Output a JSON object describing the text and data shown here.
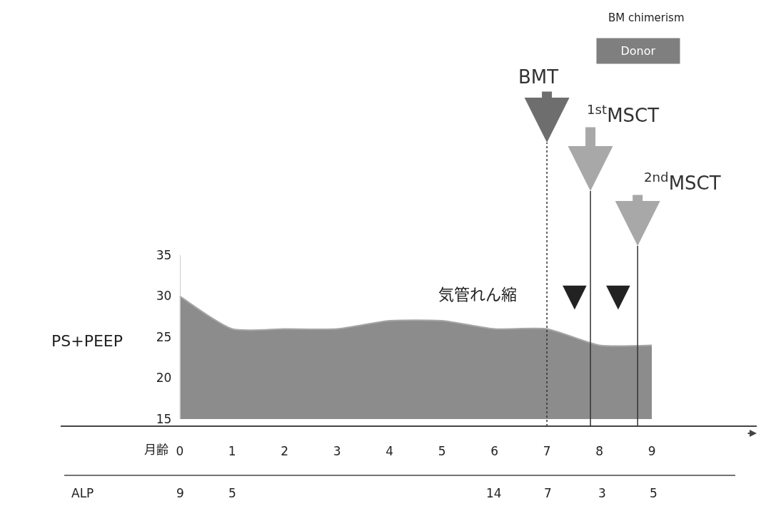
{
  "chart_data": {
    "type": "area",
    "x": [
      0,
      1,
      2,
      3,
      4,
      5,
      6,
      7,
      8,
      9
    ],
    "series": [
      {
        "color": "#8c8c8c",
        "values": [
          30,
          26,
          26,
          26,
          27,
          27,
          26,
          26,
          24,
          24
        ]
      }
    ],
    "xlim": [
      -2.27,
      11.0
    ],
    "xticks": [
      0,
      1,
      2,
      3,
      4,
      5,
      6,
      7,
      8,
      9
    ],
    "xlabel": "月齢",
    "ylim": [
      15,
      35
    ],
    "yticks": [
      15,
      20,
      25,
      30,
      35
    ],
    "ylabel": "PS+PEEP",
    "ref_lines": [
      {
        "axis": "x",
        "value": 7,
        "label": "BMT",
        "line_style": "dashed",
        "color": "#333333"
      },
      {
        "axis": "x",
        "value": 7.83,
        "label": "$^{1st}$MSCT",
        "line_style": "solid",
        "color": "#333333"
      },
      {
        "axis": "x",
        "value": 8.73,
        "label": "$^{2nd}$MSCT",
        "line_style": "solid",
        "color": "#333333"
      }
    ],
    "annotations": [
      "気管れん縮",
      "▼",
      "▼",
      "BM chimerism",
      "Donor",
      "ALP",
      "9",
      "5",
      "14",
      "7",
      "3",
      "5"
    ]
  }
}
